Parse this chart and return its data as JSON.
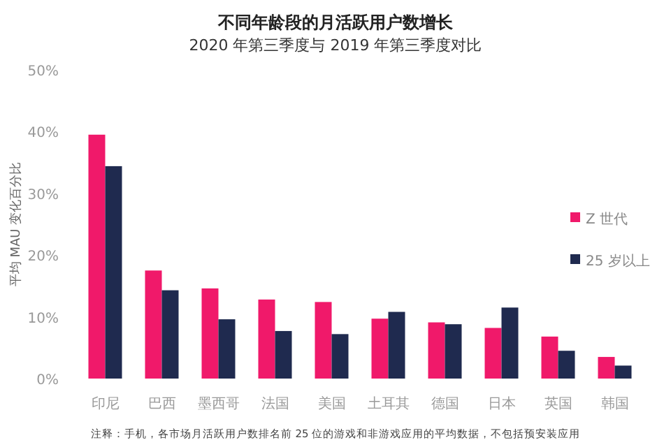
{
  "chart_data": {
    "type": "bar",
    "title": "不同年龄段的月活跃用户数增长",
    "subtitle": "2020 年第三季度与 2019 年第三季度对比",
    "ylabel": "平均 MAU 变化百分比",
    "categories": [
      "印尼",
      "巴西",
      "墨西哥",
      "法国",
      "美国",
      "土耳其",
      "德国",
      "日本",
      "英国",
      "韩国"
    ],
    "series": [
      {
        "name": "Z 世代",
        "color": "#f0196a",
        "values": [
          39.5,
          17.5,
          14.6,
          12.8,
          12.4,
          9.7,
          9.1,
          8.2,
          6.8,
          3.5
        ]
      },
      {
        "name": "25 岁以上",
        "color": "#1f2a4f",
        "values": [
          34.4,
          14.3,
          9.6,
          7.7,
          7.2,
          10.8,
          8.8,
          11.5,
          4.5,
          2.1
        ]
      }
    ],
    "ylim": [
      0,
      50
    ],
    "yticks": [
      {
        "value": 0,
        "label": "0%"
      },
      {
        "value": 10,
        "label": "10%"
      },
      {
        "value": 20,
        "label": "20%"
      },
      {
        "value": 30,
        "label": "30%"
      },
      {
        "value": 40,
        "label": "40%"
      },
      {
        "value": 50,
        "label": "50%"
      }
    ],
    "legend": "right",
    "annotations": [
      "注释：手机，各市场月活跃用户数排名前 25 位的游戏和非游戏应用的平均数据，不包括预安装应用"
    ]
  }
}
